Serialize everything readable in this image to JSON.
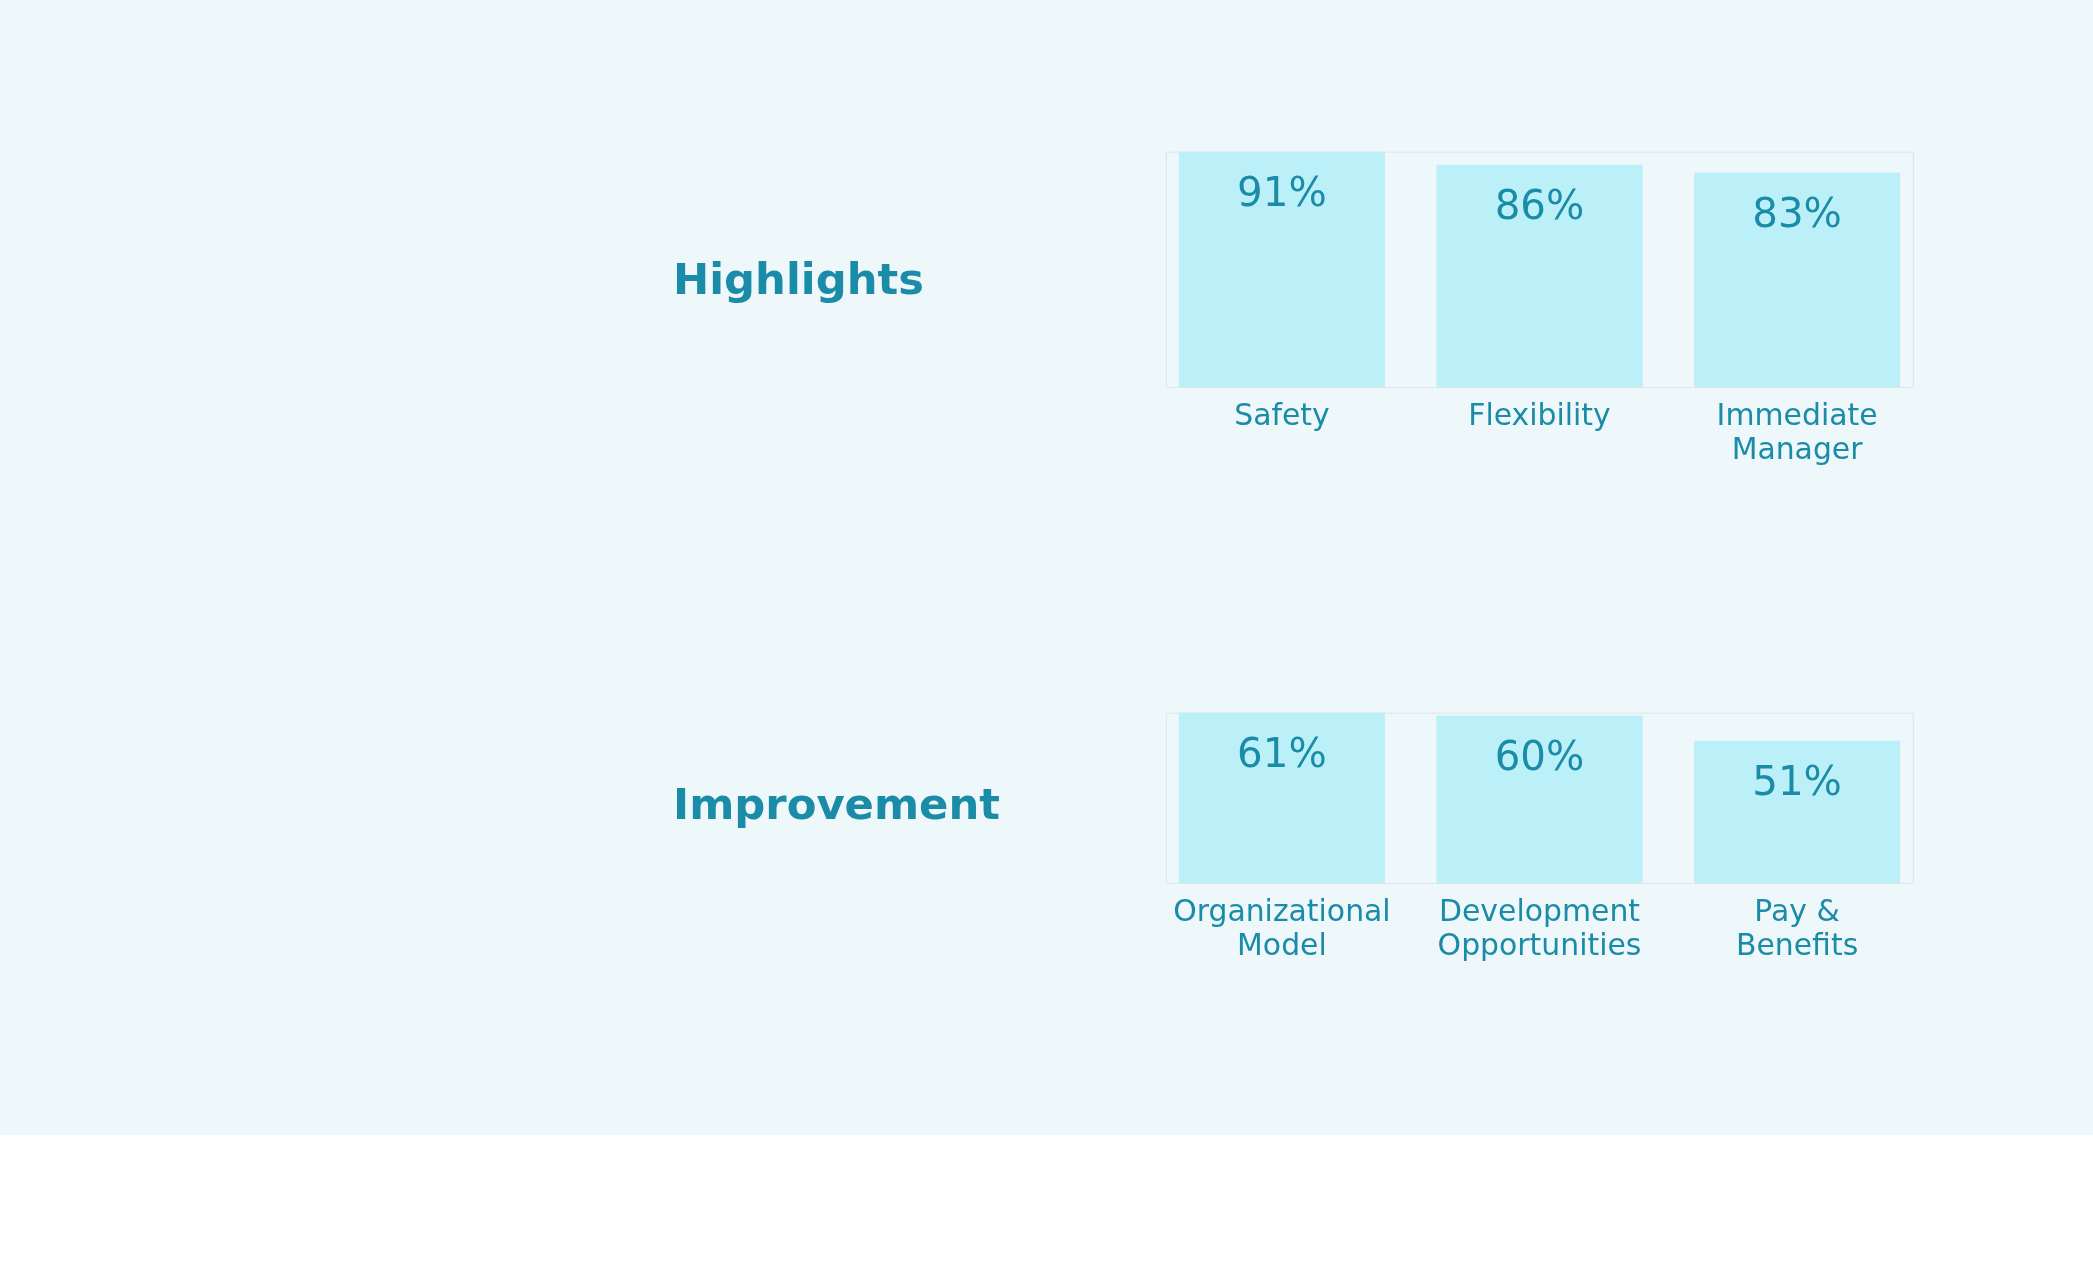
{
  "chart_data": [
    {
      "type": "bar",
      "title": "Highlights",
      "categories": [
        "Safety",
        "Flexibility",
        "Immediate\nManager"
      ],
      "values": [
        91,
        86,
        83
      ],
      "value_labels": [
        "91%",
        "86%",
        "83%"
      ],
      "color": "#bcf0f8"
    },
    {
      "type": "bar",
      "title": "Improvement",
      "categories": [
        "Organizational\nModel",
        "Development\nOpportunities",
        "Pay &\nBenefits"
      ],
      "values": [
        61,
        60,
        51
      ],
      "value_labels": [
        "61%",
        "60%",
        "51%"
      ],
      "color": "#bcf0f8"
    }
  ]
}
